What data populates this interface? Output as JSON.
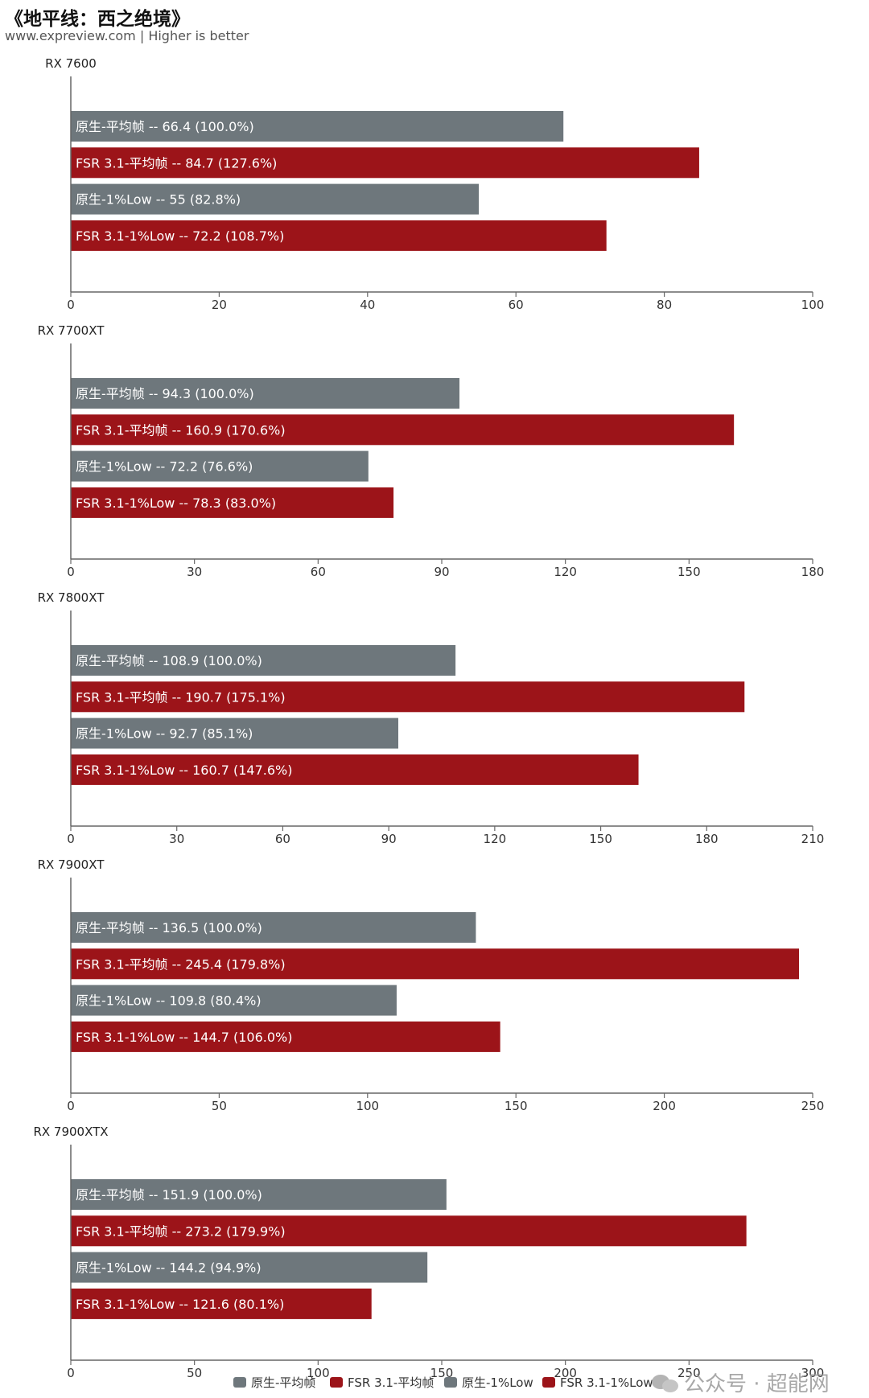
{
  "title": "《地平线：西之绝境》",
  "subtitle": "www.expreview.com | Higher is better",
  "watermark": "公众号 · 超能网",
  "colors": {
    "native": "#6e777c",
    "fsr": "#9c1419"
  },
  "chart_data": [
    {
      "type": "bar",
      "orientation": "horizontal",
      "title": "RX 7600",
      "xlim": [
        0,
        100
      ],
      "ticks": [
        0,
        20,
        40,
        60,
        80,
        100
      ],
      "series": [
        {
          "name": "原生-平均帧",
          "value": 66.4,
          "label": "原生-平均帧  --  66.4 (100.0%)"
        },
        {
          "name": "FSR 3.1-平均帧",
          "value": 84.7,
          "label": "FSR 3.1-平均帧  --  84.7 (127.6%)"
        },
        {
          "name": "原生-1%Low",
          "value": 55,
          "label": "原生-1%Low  --  55 (82.8%)"
        },
        {
          "name": "FSR 3.1-1%Low",
          "value": 72.2,
          "label": "FSR 3.1-1%Low  --  72.2 (108.7%)"
        }
      ]
    },
    {
      "type": "bar",
      "orientation": "horizontal",
      "title": "RX 7700XT",
      "xlim": [
        0,
        180
      ],
      "ticks": [
        0,
        30,
        60,
        90,
        120,
        150,
        180
      ],
      "series": [
        {
          "name": "原生-平均帧",
          "value": 94.3,
          "label": "原生-平均帧  --  94.3 (100.0%)"
        },
        {
          "name": "FSR 3.1-平均帧",
          "value": 160.9,
          "label": "FSR 3.1-平均帧  --  160.9 (170.6%)"
        },
        {
          "name": "原生-1%Low",
          "value": 72.2,
          "label": "原生-1%Low  --  72.2 (76.6%)"
        },
        {
          "name": "FSR 3.1-1%Low",
          "value": 78.3,
          "label": "FSR 3.1-1%Low  --  78.3 (83.0%)"
        }
      ]
    },
    {
      "type": "bar",
      "orientation": "horizontal",
      "title": "RX 7800XT",
      "xlim": [
        0,
        210
      ],
      "ticks": [
        0,
        30,
        60,
        90,
        120,
        150,
        180,
        210
      ],
      "series": [
        {
          "name": "原生-平均帧",
          "value": 108.9,
          "label": "原生-平均帧  --  108.9 (100.0%)"
        },
        {
          "name": "FSR 3.1-平均帧",
          "value": 190.7,
          "label": "FSR 3.1-平均帧  --  190.7 (175.1%)"
        },
        {
          "name": "原生-1%Low",
          "value": 92.7,
          "label": "原生-1%Low  --  92.7 (85.1%)"
        },
        {
          "name": "FSR 3.1-1%Low",
          "value": 160.7,
          "label": "FSR 3.1-1%Low  --  160.7 (147.6%)"
        }
      ]
    },
    {
      "type": "bar",
      "orientation": "horizontal",
      "title": "RX 7900XT",
      "xlim": [
        0,
        250
      ],
      "ticks": [
        0,
        50,
        100,
        150,
        200,
        250
      ],
      "series": [
        {
          "name": "原生-平均帧",
          "value": 136.5,
          "label": "原生-平均帧  --  136.5 (100.0%)"
        },
        {
          "name": "FSR 3.1-平均帧",
          "value": 245.4,
          "label": "FSR 3.1-平均帧  --  245.4 (179.8%)"
        },
        {
          "name": "原生-1%Low",
          "value": 109.8,
          "label": "原生-1%Low  --  109.8 (80.4%)"
        },
        {
          "name": "FSR 3.1-1%Low",
          "value": 144.7,
          "label": "FSR 3.1-1%Low  --  144.7 (106.0%)"
        }
      ]
    },
    {
      "type": "bar",
      "orientation": "horizontal",
      "title": "RX 7900XTX",
      "xlim": [
        0,
        300
      ],
      "ticks": [
        0,
        50,
        100,
        150,
        200,
        250,
        300
      ],
      "series": [
        {
          "name": "原生-平均帧",
          "value": 151.9,
          "label": "原生-平均帧  --  151.9 (100.0%)"
        },
        {
          "name": "FSR 3.1-平均帧",
          "value": 273.2,
          "label": "FSR 3.1-平均帧  --  273.2 (179.9%)"
        },
        {
          "name": "原生-1%Low",
          "value": 144.2,
          "label": "原生-1%Low  --  144.2 (94.9%)"
        },
        {
          "name": "FSR 3.1-1%Low",
          "value": 121.6,
          "label": "FSR 3.1-1%Low  --  121.6 (80.1%)"
        }
      ]
    }
  ],
  "legend": {
    "placement": "bottom-center",
    "items": [
      "原生-平均帧",
      "FSR 3.1-平均帧",
      "原生-1%Low",
      "FSR 3.1-1%Low"
    ]
  }
}
